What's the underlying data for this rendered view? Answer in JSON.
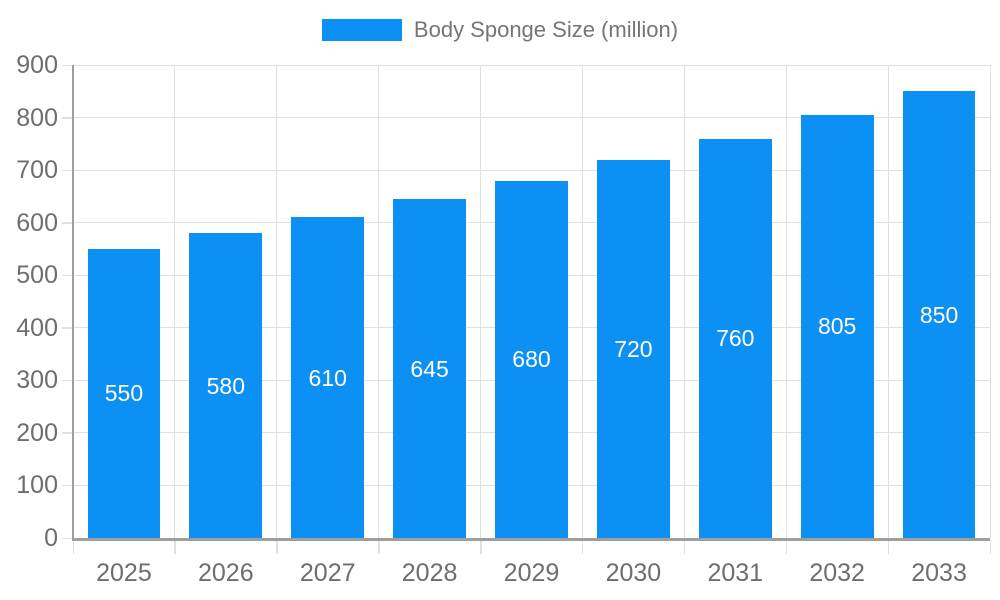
{
  "legend": {
    "label": "Body Sponge Size (million)"
  },
  "chart_data": {
    "type": "bar",
    "title": "Body Sponge Size (million)",
    "series_name": "Body Sponge Size (million)",
    "categories": [
      "2025",
      "2026",
      "2027",
      "2028",
      "2029",
      "2030",
      "2031",
      "2032",
      "2033"
    ],
    "values": [
      550,
      580,
      610,
      645,
      680,
      720,
      760,
      805,
      850
    ],
    "xlabel": "",
    "ylabel": "",
    "ylim": [
      0,
      900
    ],
    "ytick_step": 100,
    "yticks": [
      0,
      100,
      200,
      300,
      400,
      500,
      600,
      700,
      800,
      900
    ],
    "grid": true,
    "legend_position": "top-center",
    "value_label_position": "inside-center",
    "colors": {
      "bar": "#0c90f4",
      "value_label": "#ffffff",
      "grid": "#e0e0e0",
      "axis": "#9e9e9e",
      "tick_text": "#6e6e6e",
      "legend_text": "#757575",
      "background": "#ffffff"
    }
  }
}
